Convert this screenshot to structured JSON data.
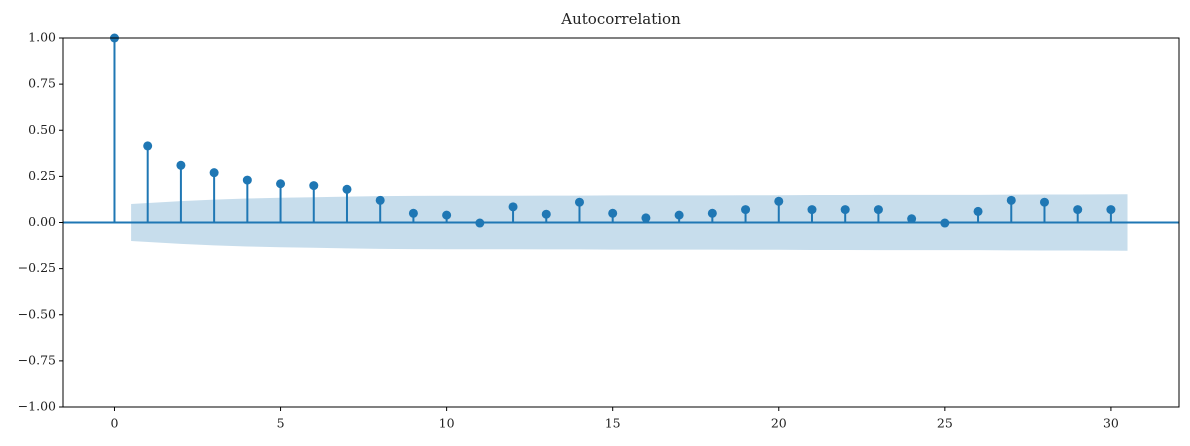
{
  "chart_data": {
    "type": "stem",
    "title": "Autocorrelation",
    "x": [
      0,
      1,
      2,
      3,
      4,
      5,
      6,
      7,
      8,
      9,
      10,
      11,
      12,
      13,
      14,
      15,
      16,
      17,
      18,
      19,
      20,
      21,
      22,
      23,
      24,
      25,
      26,
      27,
      28,
      29,
      30
    ],
    "values": [
      1.0,
      0.415,
      0.31,
      0.27,
      0.23,
      0.21,
      0.2,
      0.18,
      0.12,
      0.05,
      0.04,
      -0.003,
      0.085,
      0.045,
      0.11,
      0.05,
      0.025,
      0.04,
      0.05,
      0.07,
      0.115,
      0.07,
      0.07,
      0.07,
      0.02,
      -0.003,
      0.06,
      0.12,
      0.11,
      0.07,
      0.07
    ],
    "color": "#1f77b4",
    "confidence_band": {
      "color": "#1f77b4",
      "x": [
        0.5,
        2,
        3,
        4,
        5,
        6,
        7,
        8,
        9,
        10,
        11,
        12,
        13,
        14,
        15,
        16,
        17,
        18,
        19,
        20,
        21,
        22,
        23,
        24,
        25,
        26,
        27,
        28,
        29,
        30.5
      ],
      "upper": [
        0.1,
        0.116,
        0.124,
        0.13,
        0.134,
        0.137,
        0.14,
        0.143,
        0.144,
        0.145,
        0.145,
        0.145,
        0.146,
        0.146,
        0.147,
        0.147,
        0.147,
        0.147,
        0.148,
        0.148,
        0.149,
        0.149,
        0.15,
        0.15,
        0.15,
        0.15,
        0.151,
        0.152,
        0.152,
        0.153
      ],
      "lower": [
        -0.1,
        -0.116,
        -0.124,
        -0.13,
        -0.134,
        -0.137,
        -0.14,
        -0.143,
        -0.144,
        -0.145,
        -0.145,
        -0.145,
        -0.146,
        -0.146,
        -0.147,
        -0.147,
        -0.147,
        -0.147,
        -0.148,
        -0.148,
        -0.149,
        -0.149,
        -0.15,
        -0.15,
        -0.15,
        -0.15,
        -0.151,
        -0.152,
        -0.152,
        -0.153
      ]
    },
    "zero_line": 0,
    "xlim": [
      -1.55,
      32.05
    ],
    "xticks": [
      0,
      5,
      10,
      15,
      20,
      25,
      30
    ],
    "ylim": [
      -1,
      1
    ],
    "yticks": [
      {
        "value": -1,
        "label": "−1.00"
      },
      {
        "value": -0.75,
        "label": "−0.75"
      },
      {
        "value": -0.5,
        "label": "−0.50"
      },
      {
        "value": -0.25,
        "label": "−0.25"
      },
      {
        "value": 0,
        "label": "0.00"
      },
      {
        "value": 0.25,
        "label": "0.25"
      },
      {
        "value": 0.5,
        "label": "0.50"
      },
      {
        "value": 0.75,
        "label": "0.75"
      },
      {
        "value": 1,
        "label": "1.00"
      }
    ]
  }
}
